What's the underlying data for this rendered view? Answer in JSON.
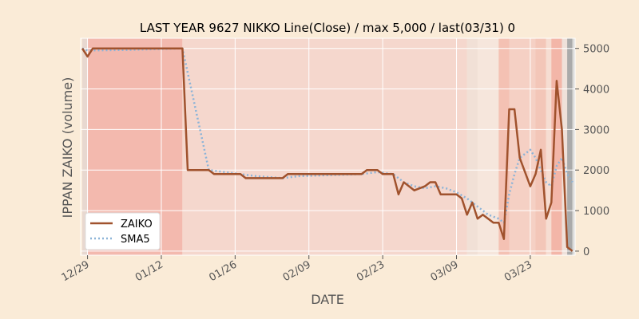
{
  "chart_data": {
    "type": "line",
    "title": "LAST YEAR 9627 NIKKO Line(Close) / max 5,000 / last(03/31) 0",
    "xlabel": "DATE",
    "ylabel": "IPPAN ZAIKO (volume)",
    "x_start": "12/28",
    "x_end": "03/31",
    "x_ticks": [
      "12/29",
      "01/12",
      "01/26",
      "02/09",
      "02/23",
      "03/09",
      "03/23"
    ],
    "y_ticks": [
      0,
      1000,
      2000,
      3000,
      4000,
      5000
    ],
    "ylim": [
      -100,
      5250
    ],
    "grid": true,
    "legend_position": "lower-left",
    "colors": {
      "zaiko": "#a0522d",
      "sma5": "#8cb4d8",
      "background": "#faebd7"
    },
    "series": [
      {
        "name": "ZAIKO",
        "style": "solid",
        "points": [
          [
            "12/28",
            5000
          ],
          [
            "12/29",
            4800
          ],
          [
            "12/30",
            5000
          ],
          [
            "01/02",
            5000
          ],
          [
            "01/05",
            5000
          ],
          [
            "01/16",
            5000
          ],
          [
            "01/17",
            2000
          ],
          [
            "01/21",
            2000
          ],
          [
            "01/22",
            1900
          ],
          [
            "01/27",
            1900
          ],
          [
            "01/28",
            1800
          ],
          [
            "02/04",
            1800
          ],
          [
            "02/05",
            1900
          ],
          [
            "02/19",
            1900
          ],
          [
            "02/20",
            2000
          ],
          [
            "02/22",
            2000
          ],
          [
            "02/23",
            1900
          ],
          [
            "02/25",
            1900
          ],
          [
            "02/26",
            1400
          ],
          [
            "02/27",
            1700
          ],
          [
            "03/01",
            1500
          ],
          [
            "03/03",
            1600
          ],
          [
            "03/04",
            1700
          ],
          [
            "03/05",
            1700
          ],
          [
            "03/06",
            1400
          ],
          [
            "03/09",
            1400
          ],
          [
            "03/10",
            1300
          ],
          [
            "03/11",
            900
          ],
          [
            "03/12",
            1200
          ],
          [
            "03/13",
            800
          ],
          [
            "03/14",
            900
          ],
          [
            "03/16",
            700
          ],
          [
            "03/17",
            700
          ],
          [
            "03/18",
            300
          ],
          [
            "03/19",
            3500
          ],
          [
            "03/20",
            3500
          ],
          [
            "03/21",
            2300
          ],
          [
            "03/23",
            1600
          ],
          [
            "03/24",
            1900
          ],
          [
            "03/25",
            2500
          ],
          [
            "03/26",
            800
          ],
          [
            "03/27",
            1200
          ],
          [
            "03/28",
            4200
          ],
          [
            "03/29",
            3000
          ],
          [
            "03/30",
            100
          ],
          [
            "03/31",
            0
          ]
        ]
      },
      {
        "name": "SMA5",
        "style": "dotted",
        "points": [
          [
            "12/28",
            5000
          ],
          [
            "12/29",
            4950
          ],
          [
            "01/05",
            4960
          ],
          [
            "01/16",
            5000
          ],
          [
            "01/17",
            4400
          ],
          [
            "01/18",
            3800
          ],
          [
            "01/19",
            3200
          ],
          [
            "01/20",
            2600
          ],
          [
            "01/21",
            2000
          ],
          [
            "01/27",
            1900
          ],
          [
            "01/30",
            1850
          ],
          [
            "02/04",
            1800
          ],
          [
            "02/07",
            1850
          ],
          [
            "02/19",
            1900
          ],
          [
            "02/22",
            1950
          ],
          [
            "02/25",
            1900
          ],
          [
            "02/26",
            1800
          ],
          [
            "02/27",
            1700
          ],
          [
            "03/01",
            1600
          ],
          [
            "03/03",
            1550
          ],
          [
            "03/05",
            1600
          ],
          [
            "03/07",
            1550
          ],
          [
            "03/09",
            1450
          ],
          [
            "03/11",
            1300
          ],
          [
            "03/13",
            1100
          ],
          [
            "03/15",
            900
          ],
          [
            "03/17",
            800
          ],
          [
            "03/18",
            700
          ],
          [
            "03/19",
            1400
          ],
          [
            "03/20",
            1900
          ],
          [
            "03/21",
            2300
          ],
          [
            "03/23",
            2500
          ],
          [
            "03/24",
            2300
          ],
          [
            "03/25",
            2000
          ],
          [
            "03/26",
            1700
          ],
          [
            "03/27",
            1600
          ],
          [
            "03/28",
            2100
          ],
          [
            "03/29",
            2300
          ],
          [
            "03/30",
            1900
          ],
          [
            "03/31",
            1700
          ]
        ]
      }
    ],
    "background_bands": [
      {
        "from": "12/28",
        "to": "12/29",
        "color": "#e8d8d0"
      },
      {
        "from": "12/29",
        "to": "01/16",
        "color": "#f3b9ae"
      },
      {
        "from": "01/16",
        "to": "03/11",
        "color": "#f5d7cd"
      },
      {
        "from": "03/11",
        "to": "03/13",
        "color": "#f1e0d6"
      },
      {
        "from": "03/13",
        "to": "03/17",
        "color": "#f6e6dc"
      },
      {
        "from": "03/17",
        "to": "03/19",
        "color": "#f4c1b3"
      },
      {
        "from": "03/19",
        "to": "03/24",
        "color": "#f5d0c4"
      },
      {
        "from": "03/24",
        "to": "03/26",
        "color": "#f3c6b8"
      },
      {
        "from": "03/26",
        "to": "03/27",
        "color": "#f6ddd2"
      },
      {
        "from": "03/27",
        "to": "03/29",
        "color": "#f3b6a8"
      },
      {
        "from": "03/29",
        "to": "03/30",
        "color": "#efe1da"
      },
      {
        "from": "03/30",
        "to": "03/31",
        "color": "#aaaaaa"
      },
      {
        "from": "03/31",
        "to": "04/01",
        "color": "#dcdcdc"
      }
    ]
  }
}
